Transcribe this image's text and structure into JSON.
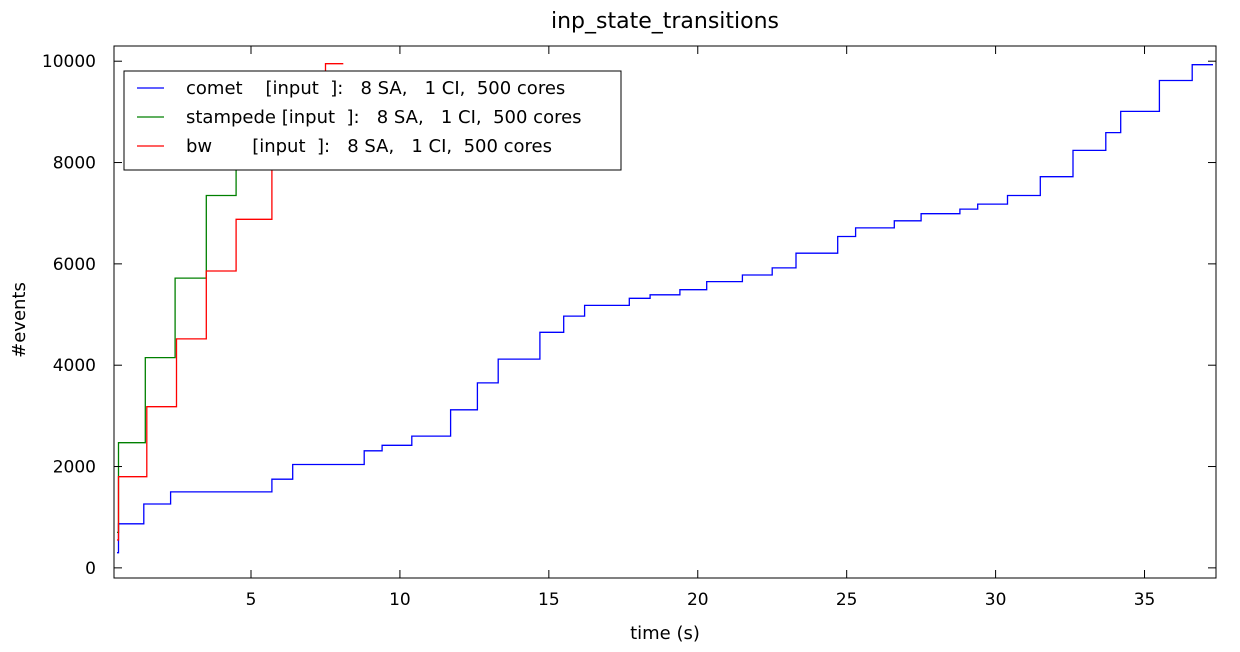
{
  "chart_data": {
    "type": "line",
    "step": true,
    "title": "inp_state_transitions",
    "xlabel": "time (s)",
    "ylabel": "#events",
    "xlim": [
      0.4,
      37.4
    ],
    "ylim": [
      -200,
      10300
    ],
    "xticks": [
      5,
      10,
      15,
      20,
      25,
      30,
      35
    ],
    "yticks": [
      0,
      2000,
      4000,
      6000,
      8000,
      10000
    ],
    "grid": false,
    "legend_position": "top-left",
    "series": [
      {
        "name": "comet    [input  ]:   8 SA,   1 CI,  500 cores",
        "color": "#0000ff",
        "x": [
          0.5,
          0.55,
          1.4,
          2.3,
          5.7,
          6.4,
          8.8,
          9.4,
          10.4,
          11.7,
          12.6,
          13.3,
          14.7,
          15.5,
          16.2,
          17.7,
          18.4,
          19.4,
          20.3,
          21.5,
          22.5,
          23.3,
          24.7,
          25.3,
          26.6,
          27.5,
          28.8,
          29.4,
          30.4,
          31.5,
          32.6,
          33.7,
          34.2,
          35.5,
          36.6,
          37.3
        ],
        "y": [
          300,
          870,
          1260,
          1500,
          1750,
          2040,
          2310,
          2420,
          2600,
          3120,
          3650,
          4120,
          4650,
          4970,
          5180,
          5320,
          5390,
          5490,
          5650,
          5780,
          5920,
          6210,
          6540,
          6710,
          6850,
          6990,
          7080,
          7180,
          7350,
          7720,
          8240,
          8590,
          9010,
          9620,
          9930,
          9930
        ]
      },
      {
        "name": "stampede [input  ]:   8 SA,   1 CI,  500 cores",
        "color": "#008000",
        "x": [
          0.5,
          0.55,
          1.45,
          2.45,
          3.5,
          4.5,
          4.5
        ],
        "y": [
          700,
          2470,
          4150,
          5720,
          7350,
          7900,
          7900
        ]
      },
      {
        "name": "bw       [input  ]:   8 SA,   1 CI,  500 cores",
        "color": "#ff0000",
        "x": [
          0.5,
          0.55,
          1.5,
          2.5,
          3.5,
          4.5,
          5.7,
          6.5,
          7.5,
          8.1
        ],
        "y": [
          550,
          1800,
          3180,
          4520,
          5860,
          6880,
          7920,
          8000,
          9950,
          9950
        ]
      }
    ]
  }
}
